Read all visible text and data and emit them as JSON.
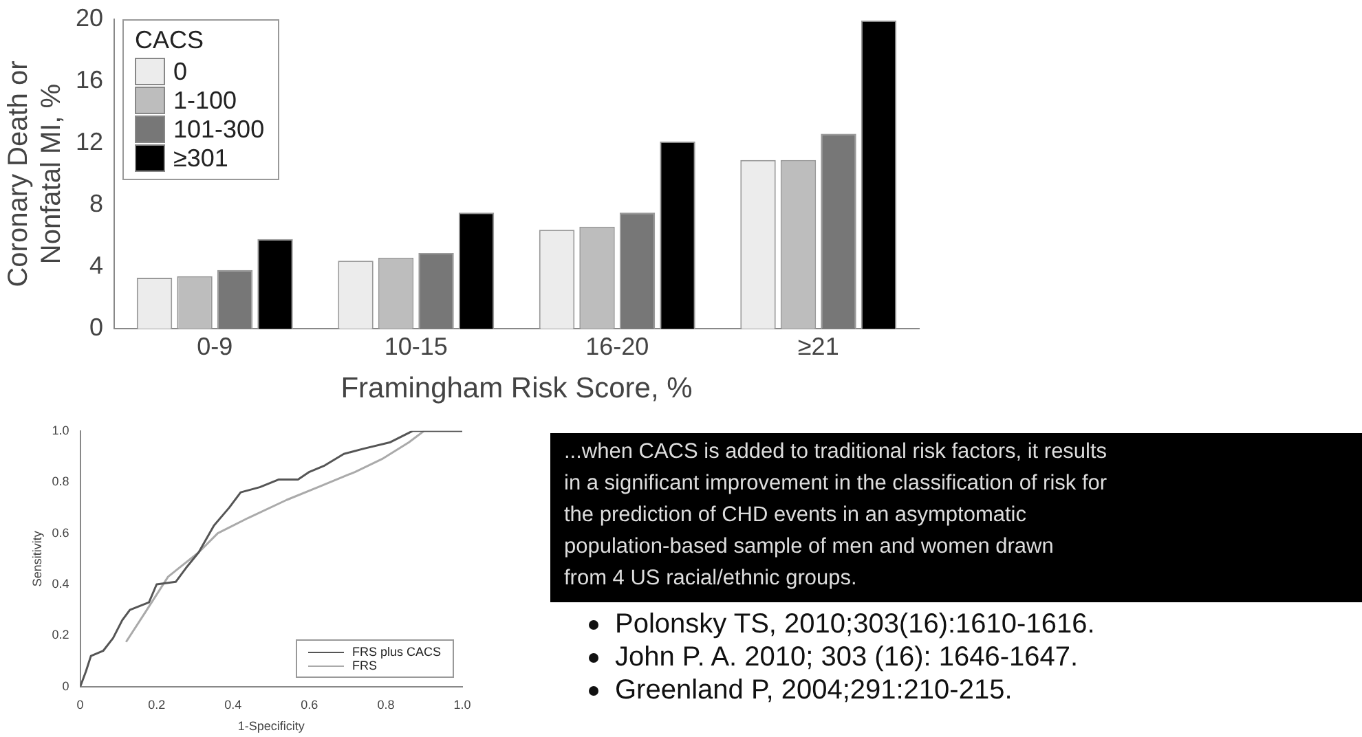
{
  "chart_data": [
    {
      "type": "bar",
      "xlabel": "Framingham Risk Score, %",
      "ylabel": "Coronary Death or\nNonfatal MI, %",
      "legend_title": "CACS",
      "legend": "top left",
      "grid": false,
      "categories": [
        "0-9",
        "10-15",
        "16-20",
        "≥21"
      ],
      "ylim": [
        0,
        20
      ],
      "yticks": [
        0,
        4,
        8,
        12,
        16,
        20
      ],
      "series": [
        {
          "name": "0",
          "color": "#ececec",
          "values": [
            3.3,
            4.4,
            6.4,
            10.9
          ]
        },
        {
          "name": "1-100",
          "color": "#bdbdbd",
          "values": [
            3.4,
            4.6,
            6.6,
            10.9
          ]
        },
        {
          "name": "101-300",
          "color": "#777777",
          "values": [
            3.8,
            4.9,
            7.5,
            12.6
          ]
        },
        {
          "name": "≥301",
          "color": "#000000",
          "values": [
            5.8,
            7.5,
            12.1,
            19.9
          ]
        }
      ]
    },
    {
      "type": "line",
      "xlabel": "1-Specificity",
      "ylabel": "Sensitivity",
      "legend": "bottom right",
      "grid": false,
      "marker": "none",
      "xlim": [
        0,
        1
      ],
      "xticks": [
        0,
        0.2,
        0.4,
        0.6,
        0.8,
        {
          "value": 1,
          "label": "1.0"
        }
      ],
      "ylim": [
        0,
        1
      ],
      "yticks": [
        0,
        0.2,
        0.4,
        0.6,
        0.8,
        {
          "value": 1,
          "label": "1.0"
        }
      ],
      "series": [
        {
          "name": "FRS plus CACS",
          "color": "#555555",
          "x": [
            0,
            0.015,
            0.028,
            0.06,
            0.086,
            0.11,
            0.13,
            0.18,
            0.2,
            0.25,
            0.28,
            0.31,
            0.35,
            0.39,
            0.42,
            0.47,
            0.52,
            0.57,
            0.6,
            0.64,
            0.69,
            0.74,
            0.81,
            0.87,
            1
          ],
          "values": [
            0,
            0.06,
            0.12,
            0.14,
            0.19,
            0.26,
            0.3,
            0.33,
            0.4,
            0.41,
            0.47,
            0.525,
            0.63,
            0.7,
            0.76,
            0.78,
            0.81,
            0.81,
            0.84,
            0.865,
            0.91,
            0.93,
            0.955,
            1,
            1
          ]
        },
        {
          "name": "FRS",
          "color": "#aaaaaa",
          "x": [
            0.12,
            0.17,
            0.23,
            0.31,
            0.36,
            0.44,
            0.54,
            0.63,
            0.72,
            0.79,
            0.86,
            0.9,
            1
          ],
          "values": [
            0.175,
            0.29,
            0.43,
            0.525,
            0.6,
            0.66,
            0.73,
            0.785,
            0.84,
            0.89,
            0.955,
            1,
            1
          ]
        }
      ]
    },
    {
      "type": "other",
      "annotations": [
        "...when CACS is added to traditional risk factors, it results\nin a significant improvement in the classification of risk for\nthe prediction of CHD events in an asymptomatic\npopulation-based sample of men and women drawn\nfrom 4 US racial/ethnic groups.",
        "Polonsky TS, 2010;303(16):1610-1616.",
        "John P. A. 2010; 303 (16): 1646-1647.",
        "Greenland P, 2004;291:210-215."
      ]
    }
  ]
}
